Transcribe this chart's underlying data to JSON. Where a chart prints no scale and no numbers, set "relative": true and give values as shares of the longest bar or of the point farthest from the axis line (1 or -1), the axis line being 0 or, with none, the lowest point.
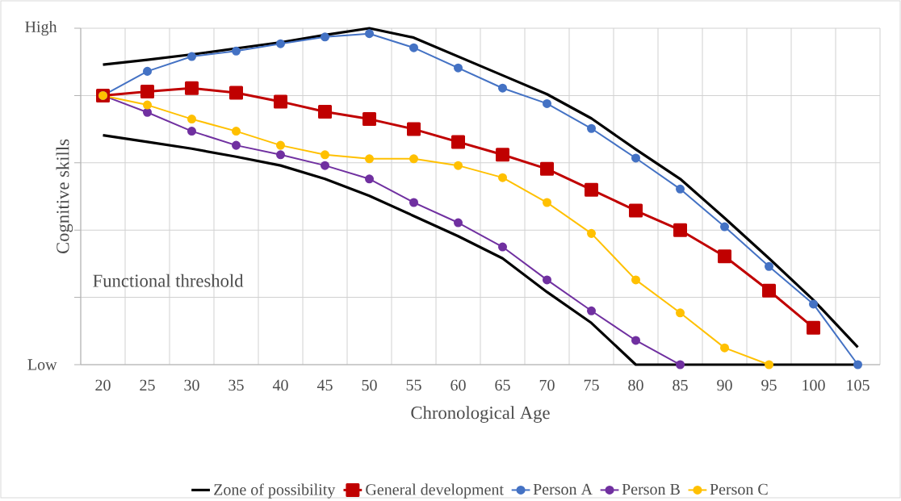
{
  "chart_data": {
    "type": "line",
    "xlabel": "Chronological Age",
    "ylabel": "Cognitive skills",
    "categories": [
      "20",
      "25",
      "30",
      "35",
      "40",
      "45",
      "50",
      "55",
      "60",
      "65",
      "70",
      "75",
      "80",
      "85",
      "90",
      "95",
      "100",
      "105"
    ],
    "relative": true,
    "grid": true,
    "legend": "bottom",
    "annotations": [
      "Functional threshold",
      "High",
      "Low"
    ],
    "series": [
      {
        "name": "Zone of possibility",
        "color": "#000000",
        "marker": "none",
        "values": [
          0.892,
          0.906,
          0.922,
          0.94,
          0.958,
          0.98,
          1.0,
          0.972,
          0.916,
          0.86,
          0.804,
          0.732,
          0.64,
          0.552,
          0.436,
          0.316,
          0.192,
          0.052
        ]
      },
      {
        "color": "#000000",
        "marker": "none",
        "values": [
          0.682,
          0.662,
          0.642,
          0.618,
          0.592,
          0.552,
          0.502,
          0.442,
          0.382,
          0.316,
          0.216,
          0.124,
          0,
          0,
          0,
          0,
          0,
          0
        ]
      },
      {
        "name": "General development",
        "color": "#c00000",
        "marker": "square",
        "values": [
          0.8,
          0.812,
          0.822,
          0.808,
          0.782,
          0.752,
          0.73,
          0.7,
          0.662,
          0.624,
          0.582,
          0.52,
          0.458,
          0.4,
          0.322,
          0.22,
          0.11,
          null
        ]
      },
      {
        "name": "Person A",
        "color": "#4472c4",
        "marker": "circle",
        "values": [
          0.8,
          0.872,
          0.916,
          0.932,
          0.954,
          0.974,
          0.984,
          0.942,
          0.882,
          0.822,
          0.776,
          0.702,
          0.614,
          0.522,
          0.41,
          0.292,
          0.18,
          0
        ]
      },
      {
        "name": "Person B",
        "color": "#7030a0",
        "marker": "circle",
        "values": [
          0.8,
          0.75,
          0.694,
          0.652,
          0.624,
          0.592,
          0.552,
          0.482,
          0.422,
          0.35,
          0.252,
          0.16,
          0.072,
          0,
          null,
          null,
          null,
          null
        ]
      },
      {
        "name": "Person C",
        "color": "#ffc000",
        "marker": "circle",
        "values": [
          0.8,
          0.772,
          0.73,
          0.694,
          0.652,
          0.624,
          0.612,
          0.612,
          0.592,
          0.556,
          0.482,
          0.39,
          0.252,
          0.154,
          0.05,
          0,
          null,
          null
        ]
      }
    ]
  }
}
